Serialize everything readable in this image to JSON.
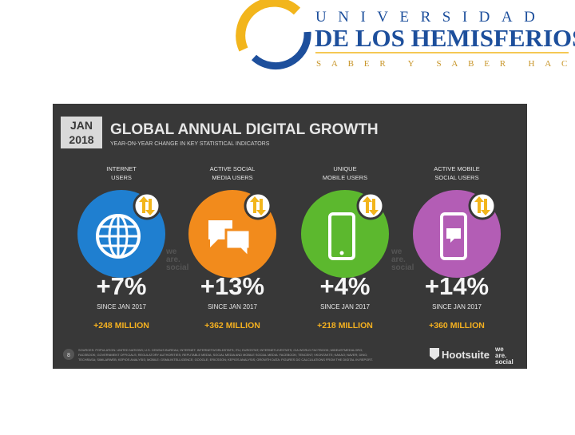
{
  "logo": {
    "line1": "UNIVERSIDAD",
    "line2": "DE LOS HEMISFERIOS",
    "line3": "SABER Y SABER HACER"
  },
  "infographic": {
    "date_month": "JAN",
    "date_year": "2018",
    "title": "GLOBAL ANNUAL DIGITAL GROWTH",
    "subtitle": "YEAR-ON-YEAR CHANGE IN KEY STATISTICAL INDICATORS",
    "columns": [
      {
        "label": [
          "INTERNET",
          "USERS"
        ],
        "change": "+7%",
        "since": "SINCE JAN 2017",
        "absolute": "+248 MILLION"
      },
      {
        "label": [
          "ACTIVE SOCIAL",
          "MEDIA USERS"
        ],
        "change": "+13%",
        "since": "SINCE JAN 2017",
        "absolute": "+362 MILLION"
      },
      {
        "label": [
          "UNIQUE",
          "MOBILE USERS"
        ],
        "change": "+4%",
        "since": "SINCE JAN 2017",
        "absolute": "+218 MILLION"
      },
      {
        "label": [
          "ACTIVE MOBILE",
          "SOCIAL USERS"
        ],
        "change": "+14%",
        "since": "SINCE JAN 2017",
        "absolute": "+360 MILLION"
      }
    ],
    "watermark": [
      "we",
      "are.",
      "social"
    ],
    "page_number": "8",
    "sources": [
      "SOURCES: POPULATION: UNITED NATIONS; U.S. CENSUS BUREAU; INTERNET: INTERNETWORLDSTATS; ITU; EUROSTAT; INTERNETLIVESTATS; CIA WORLD FACTBOOK; MIDEASTMEDIA.ORG;",
      "FACEBOOK; GOVERNMENT OFFICIALS; REGULATORY AUTHORITIES; REPUTABLE MEDIA; SOCIAL MEDIA AND MOBILE SOCIAL MEDIA: FACEBOOK; TENCENT; VKONTAKTE; KAKAO; NAVER; DING;",
      "TECHRASA; SIMILARWEB; KEPIOS ANALYSIS; MOBILE: GSMA INTELLIGENCE; GOOGLE; ERICSSON; KEPIOS ANALYSIS; GROWTH DATA: FIGURES DO CALCULATIONS FROM THE DIGITAL IN REPORT."
    ],
    "brand": "Hootsuite"
  }
}
